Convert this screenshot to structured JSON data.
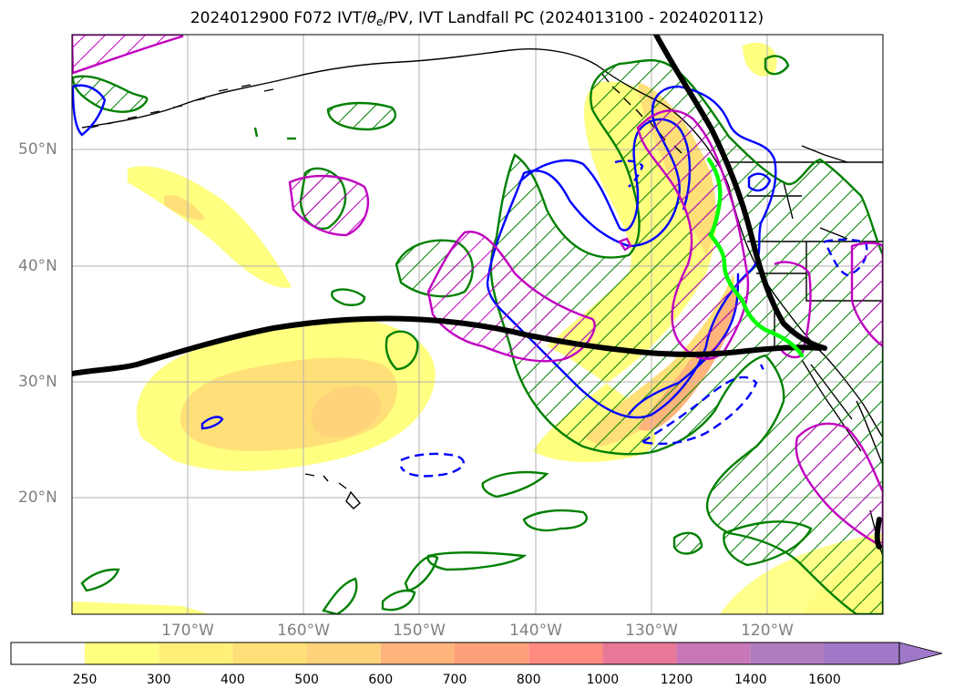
{
  "title": {
    "prefix": "2024012900 F072 IVT/",
    "theta": "θ",
    "theta_sub": "e",
    "suffix": "/PV, IVT Landfall PC (2024013100 - 2024020112)"
  },
  "map": {
    "lat_labels": [
      "50°N",
      "40°N",
      "30°N",
      "20°N"
    ],
    "lon_labels": [
      "170°W",
      "160°W",
      "150°W",
      "140°W",
      "130°W",
      "120°W"
    ],
    "colors": {
      "land_outline": "#000000",
      "grid": "#b0b0b0",
      "theta_e_contour": "#008000",
      "pv_contour": "#0000ff",
      "ivt_contour": "#c000c0",
      "landfall_track": "#000000",
      "pc_track": "#00ff00"
    }
  },
  "colorbar": {
    "ticks": [
      "250",
      "300",
      "400",
      "500",
      "600",
      "700",
      "800",
      "1000",
      "1200",
      "1400",
      "1600"
    ],
    "colors": [
      "#ffffff",
      "#ffff80",
      "#fff07a",
      "#ffe078",
      "#ffd27c",
      "#ffb47c",
      "#ffa07c",
      "#ff8a80",
      "#e87898",
      "#c878b8",
      "#b07cc0",
      "#a078c8"
    ],
    "extend": "max"
  }
}
